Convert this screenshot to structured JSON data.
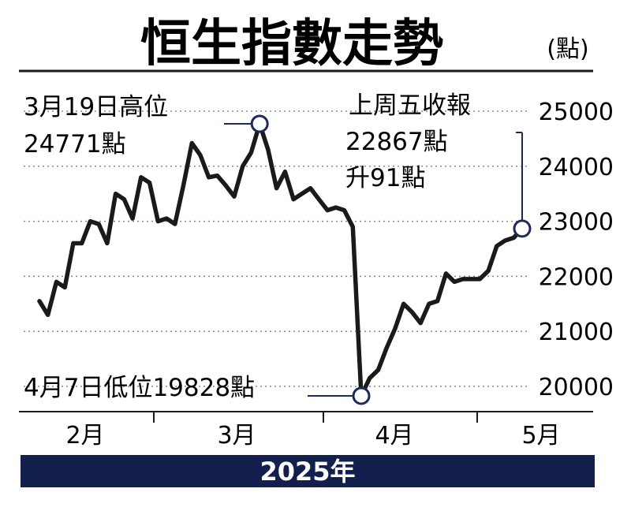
{
  "chart_data": {
    "type": "line",
    "title": "恒生指數走勢",
    "unit": "(點)",
    "year_label": "2025年",
    "ylim": [
      20000,
      25000
    ],
    "y_ticks": [
      {
        "value": 25000,
        "label": "25000"
      },
      {
        "value": 24000,
        "label": "24000"
      },
      {
        "value": 23000,
        "label": "23000"
      },
      {
        "value": 22000,
        "label": "22000"
      },
      {
        "value": 21000,
        "label": "21000"
      },
      {
        "value": 20000,
        "label": "20000"
      }
    ],
    "month_labels": [
      "2月",
      "3月",
      "4月",
      "5月"
    ],
    "grid": "dotted horizontal",
    "line_color": "#1a1a1a",
    "accent_color": "#1e2a5a",
    "series": [
      {
        "values": [
          21550,
          21300,
          21900,
          21800,
          22600,
          22600,
          23000,
          22950,
          22600,
          23500,
          23400,
          23050,
          23800,
          23700,
          23000,
          23050,
          22950,
          23650,
          24420,
          24200,
          23800,
          23830,
          23650,
          23450,
          24000,
          24250,
          24771,
          24300,
          23600,
          23900,
          23400,
          23500,
          23600,
          23400,
          23200,
          23250,
          23200,
          22900,
          19828,
          20150,
          20300,
          20700,
          21050,
          21500,
          21350,
          21150,
          21500,
          21550,
          22050,
          21900,
          21950,
          21950,
          21950,
          22100,
          22550,
          22650,
          22700,
          22867
        ]
      }
    ],
    "annotations": {
      "high": {
        "line1": "3月19日高位",
        "line2": "24771點",
        "index": 26,
        "value": 24771
      },
      "low": {
        "text": "4月7日低位19828點",
        "index": 38,
        "value": 19828
      },
      "last": {
        "line1": "上周五收報",
        "line2": "22867點",
        "line3": "升91點",
        "index": 57,
        "value": 22867
      }
    }
  }
}
